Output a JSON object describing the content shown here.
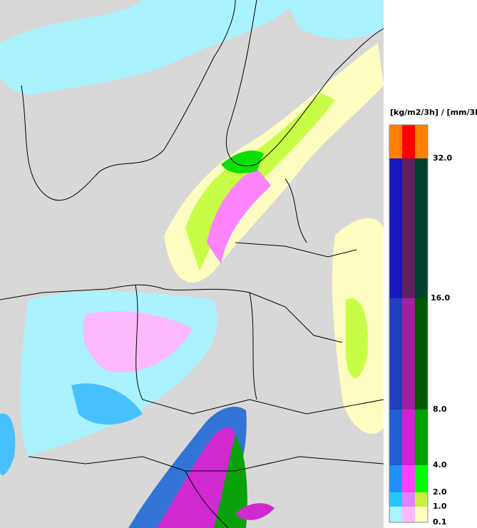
{
  "legend": {
    "title": "[kg/m2/3h] / [mm/3h]",
    "levels": [
      "32.0",
      "16.0",
      "8.0",
      "4.0",
      "2.0",
      "1.0",
      "0.1"
    ]
  }
}
